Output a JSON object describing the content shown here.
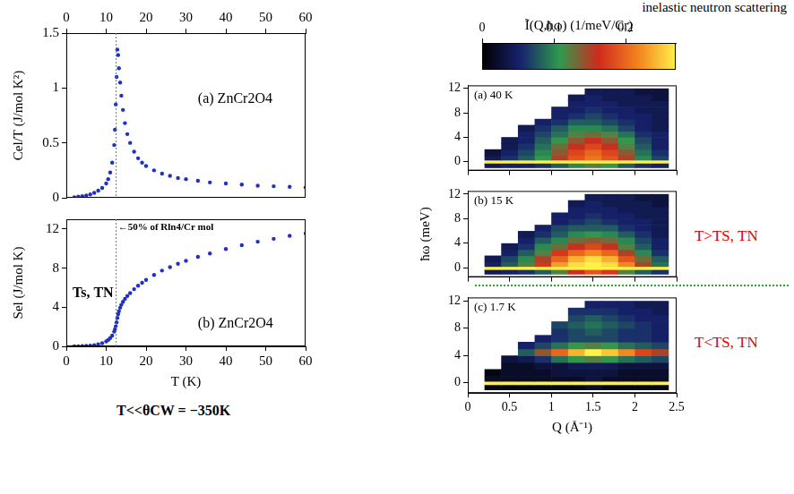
{
  "title": "inelastic neutron scattering",
  "note": "T<<θCW = −350K",
  "chart_data": [
    {
      "type": "scatter",
      "title": "(a) ZnCr2O4",
      "y_label": "Cel/T (J/mol K²)",
      "x": [
        2,
        3,
        4,
        5,
        6,
        7,
        8,
        9,
        10,
        10.5,
        11,
        11.5,
        12,
        12.2,
        12.4,
        12.6,
        12.8,
        13,
        13.2,
        13.5,
        13.8,
        14.2,
        14.7,
        15.3,
        16,
        17,
        18,
        19,
        20,
        22,
        24,
        26,
        28,
        30,
        33,
        36,
        40,
        44,
        48,
        52,
        56,
        60
      ],
      "values": [
        0.005,
        0.01,
        0.015,
        0.02,
        0.03,
        0.045,
        0.065,
        0.09,
        0.13,
        0.17,
        0.23,
        0.32,
        0.48,
        0.62,
        0.85,
        1.1,
        1.35,
        1.3,
        1.18,
        1.05,
        0.93,
        0.8,
        0.68,
        0.58,
        0.5,
        0.42,
        0.36,
        0.32,
        0.29,
        0.25,
        0.22,
        0.2,
        0.18,
        0.17,
        0.155,
        0.14,
        0.13,
        0.12,
        0.11,
        0.105,
        0.1,
        0.095
      ],
      "color": "#1f30c8",
      "marker": "circle",
      "xlim": [
        0,
        60
      ],
      "xticks": [
        0,
        10,
        20,
        30,
        40,
        50,
        60
      ],
      "ylim": [
        0,
        1.5
      ],
      "yticks": [
        0,
        0.5,
        1,
        1.5
      ],
      "vline": 12.5,
      "grid": false
    },
    {
      "type": "scatter",
      "title": "(b) ZnCr2O4",
      "x_label": "T (K)",
      "y_label": "Sel (J/mol K)",
      "x": [
        2,
        3,
        4,
        5,
        6,
        7,
        8,
        9,
        10,
        10.5,
        11,
        11.5,
        12,
        12.2,
        12.4,
        12.6,
        12.8,
        13,
        13.2,
        13.5,
        13.8,
        14.2,
        14.7,
        15.3,
        16,
        17,
        18,
        19,
        20,
        22,
        24,
        26,
        28,
        30,
        33,
        36,
        40,
        44,
        48,
        52,
        56,
        60
      ],
      "values": [
        0,
        0.01,
        0.02,
        0.04,
        0.07,
        0.12,
        0.2,
        0.32,
        0.5,
        0.65,
        0.85,
        1.1,
        1.5,
        1.75,
        2.05,
        2.45,
        2.9,
        3.3,
        3.6,
        3.95,
        4.25,
        4.55,
        4.85,
        5.15,
        5.45,
        5.85,
        6.2,
        6.5,
        6.8,
        7.3,
        7.75,
        8.1,
        8.45,
        8.75,
        9.15,
        9.5,
        9.95,
        10.35,
        10.7,
        11,
        11.3,
        11.55
      ],
      "color": "#1f30c8",
      "marker": "circle",
      "xlim": [
        0,
        60
      ],
      "xticks": [
        0,
        10,
        20,
        30,
        40,
        50,
        60
      ],
      "ylim": [
        0,
        13
      ],
      "yticks": [
        0,
        4,
        8,
        12
      ],
      "vline": 12.5,
      "grid": false,
      "annotations": [
        "←50% of Rln4/Cr mol",
        "Ts, TN"
      ]
    },
    {
      "type": "heatmap",
      "title": "(a) 40 K",
      "tick_labels": "y",
      "colorbar": {
        "label": "Ĩ(Q,ħω) (1/meV/Cr)",
        "range": [
          0,
          0.27
        ],
        "ticks": [
          0,
          0.1,
          0.2
        ],
        "colors": [
          "#000000",
          "#17236e",
          "#2e9a4e",
          "#d02a1c",
          "#f2801e",
          "#fff04a"
        ]
      },
      "x_edges": [
        0.2,
        0.4,
        0.6,
        0.8,
        1.0,
        1.2,
        1.4,
        1.6,
        1.8,
        2.0,
        2.2,
        2.4
      ],
      "y_edges": [
        -1,
        -0.25,
        0.25,
        1,
        2,
        3,
        4,
        5,
        6,
        7,
        8,
        9,
        10,
        11,
        12
      ],
      "cells": [
        [
          0.04,
          0.05,
          0.05,
          0.06,
          0.08,
          0.1,
          0.12,
          0.11,
          0.08,
          0.06,
          0.05
        ],
        [
          0.27,
          0.27,
          0.27,
          0.27,
          0.27,
          0.27,
          0.27,
          0.27,
          0.27,
          0.27,
          0.27
        ],
        [
          0.04,
          0.06,
          0.08,
          0.11,
          0.15,
          0.19,
          0.21,
          0.19,
          0.15,
          0.1,
          0.07
        ],
        [
          0.03,
          0.05,
          0.07,
          0.1,
          0.14,
          0.18,
          0.2,
          0.18,
          0.14,
          0.09,
          0.06
        ],
        [
          null,
          0.04,
          0.06,
          0.09,
          0.13,
          0.16,
          0.18,
          0.16,
          0.12,
          0.08,
          0.05
        ],
        [
          null,
          0.04,
          0.05,
          0.08,
          0.11,
          0.14,
          0.16,
          0.14,
          0.11,
          0.07,
          0.05
        ],
        [
          null,
          null,
          0.05,
          0.07,
          0.09,
          0.12,
          0.13,
          0.12,
          0.09,
          0.06,
          0.05
        ],
        [
          null,
          null,
          0.04,
          0.06,
          0.08,
          0.1,
          0.1,
          0.09,
          0.07,
          0.05,
          0.04
        ],
        [
          null,
          null,
          null,
          0.05,
          0.06,
          0.08,
          0.08,
          0.07,
          0.06,
          0.05,
          0.04
        ],
        [
          null,
          null,
          null,
          null,
          0.05,
          0.06,
          0.07,
          0.06,
          0.05,
          0.05,
          0.04
        ],
        [
          null,
          null,
          null,
          null,
          0.05,
          0.05,
          0.06,
          0.05,
          0.05,
          0.04,
          0.04
        ],
        [
          null,
          null,
          null,
          null,
          null,
          0.05,
          0.05,
          0.05,
          0.04,
          0.04,
          0.04
        ],
        [
          null,
          null,
          null,
          null,
          null,
          0.04,
          0.05,
          0.04,
          0.04,
          0.04,
          0.03
        ],
        [
          null,
          null,
          null,
          null,
          null,
          null,
          0.04,
          0.04,
          0.04,
          0.03,
          0.03
        ]
      ],
      "xlim": [
        0,
        2.5
      ],
      "xticks": [
        0,
        0.5,
        1,
        1.5,
        2,
        2.5
      ],
      "ylim": [
        -1.5,
        12.5
      ],
      "yticks": [
        0,
        4,
        8,
        12
      ],
      "grid": false
    },
    {
      "type": "heatmap",
      "title": "(b) 15 K",
      "y_label": "ħω (meV)",
      "tick_labels": "y",
      "annotations": [
        "T>TS, TN"
      ],
      "x_edges": [
        0.2,
        0.4,
        0.6,
        0.8,
        1.0,
        1.2,
        1.4,
        1.6,
        1.8,
        2.0,
        2.2,
        2.4
      ],
      "y_edges": [
        -1,
        -0.25,
        0.25,
        1,
        2,
        3,
        4,
        5,
        6,
        7,
        8,
        9,
        10,
        11,
        12
      ],
      "cells": [
        [
          0.04,
          0.05,
          0.06,
          0.08,
          0.12,
          0.16,
          0.19,
          0.17,
          0.12,
          0.08,
          0.06
        ],
        [
          0.27,
          0.27,
          0.27,
          0.27,
          0.27,
          0.27,
          0.27,
          0.27,
          0.27,
          0.27,
          0.27
        ],
        [
          0.05,
          0.08,
          0.12,
          0.17,
          0.23,
          0.26,
          0.27,
          0.26,
          0.22,
          0.15,
          0.09
        ],
        [
          0.04,
          0.07,
          0.1,
          0.15,
          0.2,
          0.24,
          0.26,
          0.24,
          0.19,
          0.13,
          0.08
        ],
        [
          null,
          0.05,
          0.08,
          0.12,
          0.17,
          0.2,
          0.22,
          0.2,
          0.15,
          0.1,
          0.06
        ],
        [
          null,
          0.04,
          0.06,
          0.1,
          0.13,
          0.16,
          0.18,
          0.16,
          0.12,
          0.08,
          0.05
        ],
        [
          null,
          null,
          0.05,
          0.08,
          0.1,
          0.13,
          0.14,
          0.13,
          0.1,
          0.07,
          0.05
        ],
        [
          null,
          null,
          0.04,
          0.06,
          0.08,
          0.1,
          0.11,
          0.1,
          0.08,
          0.06,
          0.04
        ],
        [
          null,
          null,
          null,
          0.05,
          0.07,
          0.08,
          0.08,
          0.08,
          0.06,
          0.05,
          0.04
        ],
        [
          null,
          null,
          null,
          null,
          0.05,
          0.06,
          0.07,
          0.06,
          0.05,
          0.05,
          0.04
        ],
        [
          null,
          null,
          null,
          null,
          0.05,
          0.05,
          0.06,
          0.05,
          0.05,
          0.04,
          0.04
        ],
        [
          null,
          null,
          null,
          null,
          null,
          0.05,
          0.05,
          0.05,
          0.04,
          0.04,
          0.04
        ],
        [
          null,
          null,
          null,
          null,
          null,
          0.04,
          0.05,
          0.04,
          0.04,
          0.04,
          0.03
        ],
        [
          null,
          null,
          null,
          null,
          null,
          null,
          0.04,
          0.04,
          0.04,
          0.03,
          0.03
        ]
      ],
      "xlim": [
        0,
        2.5
      ],
      "xticks": [
        0,
        0.5,
        1,
        1.5,
        2,
        2.5
      ],
      "ylim": [
        -1.5,
        12.5
      ],
      "yticks": [
        0,
        4,
        8,
        12
      ],
      "grid": false
    },
    {
      "type": "heatmap",
      "title": "(c) 1.7 K",
      "x_label": "Q (Å⁻¹)",
      "annotations": [
        "T<TS, TN"
      ],
      "x_edges": [
        0.2,
        0.4,
        0.6,
        0.8,
        1.0,
        1.2,
        1.4,
        1.6,
        1.8,
        2.0,
        2.2,
        2.4
      ],
      "y_edges": [
        -1,
        -0.25,
        0.25,
        1,
        2,
        3,
        4,
        5,
        6,
        7,
        8,
        9,
        10,
        11,
        12
      ],
      "cells": [
        [
          0.01,
          0.01,
          0.01,
          0.01,
          0.01,
          0.01,
          0.02,
          0.01,
          0.01,
          0.01,
          0.01
        ],
        [
          0.27,
          0.27,
          0.27,
          0.27,
          0.27,
          0.27,
          0.27,
          0.27,
          0.27,
          0.27,
          0.27
        ],
        [
          0.02,
          0.02,
          0.02,
          0.02,
          0.02,
          0.02,
          0.03,
          0.02,
          0.02,
          0.02,
          0.02
        ],
        [
          0.01,
          0.02,
          0.02,
          0.02,
          0.03,
          0.03,
          0.03,
          0.03,
          0.02,
          0.02,
          0.02
        ],
        [
          null,
          0.02,
          0.02,
          0.03,
          0.03,
          0.04,
          0.04,
          0.04,
          0.03,
          0.03,
          0.03
        ],
        [
          null,
          0.03,
          0.04,
          0.06,
          0.09,
          0.11,
          0.12,
          0.11,
          0.09,
          0.08,
          0.07
        ],
        [
          null,
          null,
          0.08,
          0.14,
          0.2,
          0.24,
          0.27,
          0.25,
          0.22,
          0.18,
          0.15
        ],
        [
          null,
          null,
          0.05,
          0.07,
          0.09,
          0.11,
          0.12,
          0.11,
          0.09,
          0.08,
          0.07
        ],
        [
          null,
          null,
          null,
          0.05,
          0.06,
          0.07,
          0.07,
          0.07,
          0.06,
          0.06,
          0.05
        ],
        [
          null,
          null,
          null,
          null,
          0.06,
          0.07,
          0.08,
          0.07,
          0.06,
          0.06,
          0.05
        ],
        [
          null,
          null,
          null,
          null,
          0.07,
          0.08,
          0.09,
          0.08,
          0.07,
          0.06,
          0.05
        ],
        [
          null,
          null,
          null,
          null,
          null,
          0.07,
          0.08,
          0.07,
          0.06,
          0.05,
          0.05
        ],
        [
          null,
          null,
          null,
          null,
          null,
          0.06,
          0.06,
          0.06,
          0.05,
          0.05,
          0.04
        ],
        [
          null,
          null,
          null,
          null,
          null,
          null,
          0.05,
          0.05,
          0.05,
          0.04,
          0.04
        ]
      ],
      "xlim": [
        0,
        2.5
      ],
      "xticks": [
        0,
        0.5,
        1,
        1.5,
        2,
        2.5
      ],
      "ylim": [
        -1.5,
        12.5
      ],
      "yticks": [
        0,
        4,
        8,
        12
      ],
      "grid": false
    }
  ]
}
